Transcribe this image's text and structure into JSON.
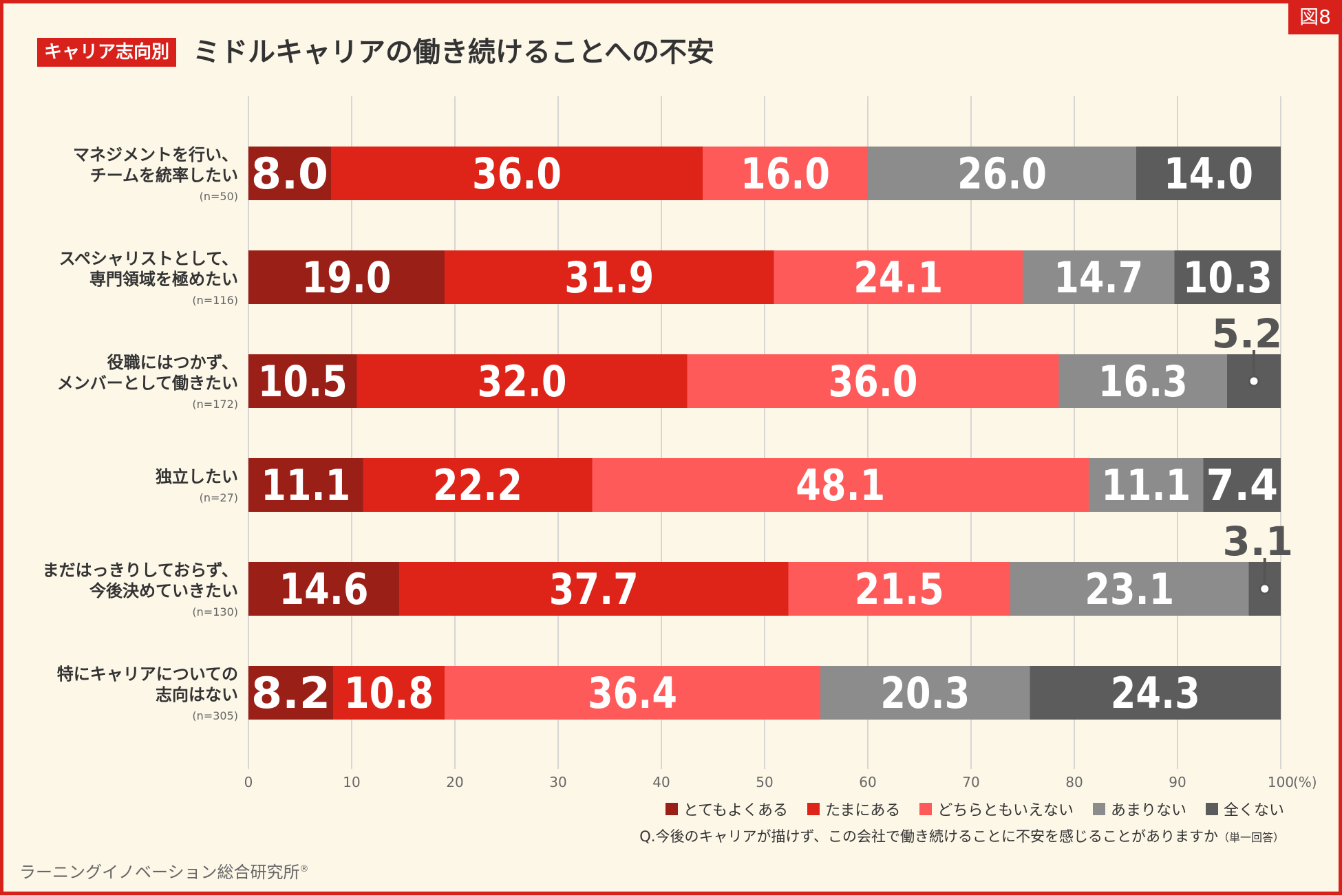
{
  "figure_label": "図8",
  "title_tag": "キャリア志向別",
  "title": "ミドルキャリアの働き続けることへの不安",
  "question": "Q.今後のキャリアが描けず、この会社で働き続けることに不安を感じることがありますか",
  "question_note": "（単一回答）",
  "source": "ラーニングイノベーション総合研究所",
  "source_mark": "®",
  "colors": {
    "very_often": "#9a1f17",
    "sometimes": "#de2319",
    "neutral": "#ff5a5a",
    "rarely": "#8c8c8c",
    "never": "#5c5c5c",
    "grid": "#cccccc"
  },
  "chart_data": {
    "type": "bar",
    "orientation": "horizontal",
    "stacked": true,
    "title": "ミドルキャリアの働き続けることへの不安",
    "xlabel": "",
    "x_unit": "(%)",
    "xlim": [
      0,
      100
    ],
    "x_ticks": [
      "0",
      "10",
      "20",
      "30",
      "40",
      "50",
      "60",
      "70",
      "80",
      "90",
      "100"
    ],
    "grid": true,
    "legend_position": "bottom-right",
    "categories": [
      {
        "label_lines": [
          "マネジメントを行い、",
          "チームを統率したい"
        ],
        "n": "(n=50)"
      },
      {
        "label_lines": [
          "スペシャリストとして、",
          "専門領域を極めたい"
        ],
        "n": "(n=116)"
      },
      {
        "label_lines": [
          "役職にはつかず、",
          "メンバーとして働きたい"
        ],
        "n": "(n=172)"
      },
      {
        "label_lines": [
          "独立したい"
        ],
        "n": "(n=27)"
      },
      {
        "label_lines": [
          "まだはっきりしておらず、",
          "今後決めていきたい"
        ],
        "n": "(n=130)"
      },
      {
        "label_lines": [
          "特にキャリアについての",
          "志向はない"
        ],
        "n": "(n=305)"
      }
    ],
    "series": [
      {
        "name": "とてもよくある",
        "values": [
          8.0,
          19.0,
          10.5,
          11.1,
          14.6,
          8.2
        ],
        "labels": [
          "8.0",
          "19.0",
          "10.5",
          "11.1",
          "14.6",
          "8.2"
        ]
      },
      {
        "name": "たまにある",
        "values": [
          36.0,
          31.9,
          32.0,
          22.2,
          37.7,
          10.8
        ],
        "labels": [
          "36.0",
          "31.9",
          "32.0",
          "22.2",
          "37.7",
          "10.8"
        ]
      },
      {
        "name": "どちらともいえない",
        "values": [
          16.0,
          24.1,
          36.0,
          48.1,
          21.5,
          36.4
        ],
        "labels": [
          "16.0",
          "24.1",
          "36.0",
          "48.1",
          "21.5",
          "36.4"
        ]
      },
      {
        "name": "あまりない",
        "values": [
          26.0,
          14.7,
          16.3,
          11.1,
          23.1,
          20.3
        ],
        "labels": [
          "26.0",
          "14.7",
          "16.3",
          "11.1",
          "23.1",
          "20.3"
        ]
      },
      {
        "name": "全くない",
        "values": [
          14.0,
          10.3,
          5.2,
          7.4,
          3.1,
          24.3
        ],
        "labels": [
          "14.0",
          "10.3",
          "5.2",
          "7.4",
          "3.1",
          "24.3"
        ]
      }
    ]
  }
}
